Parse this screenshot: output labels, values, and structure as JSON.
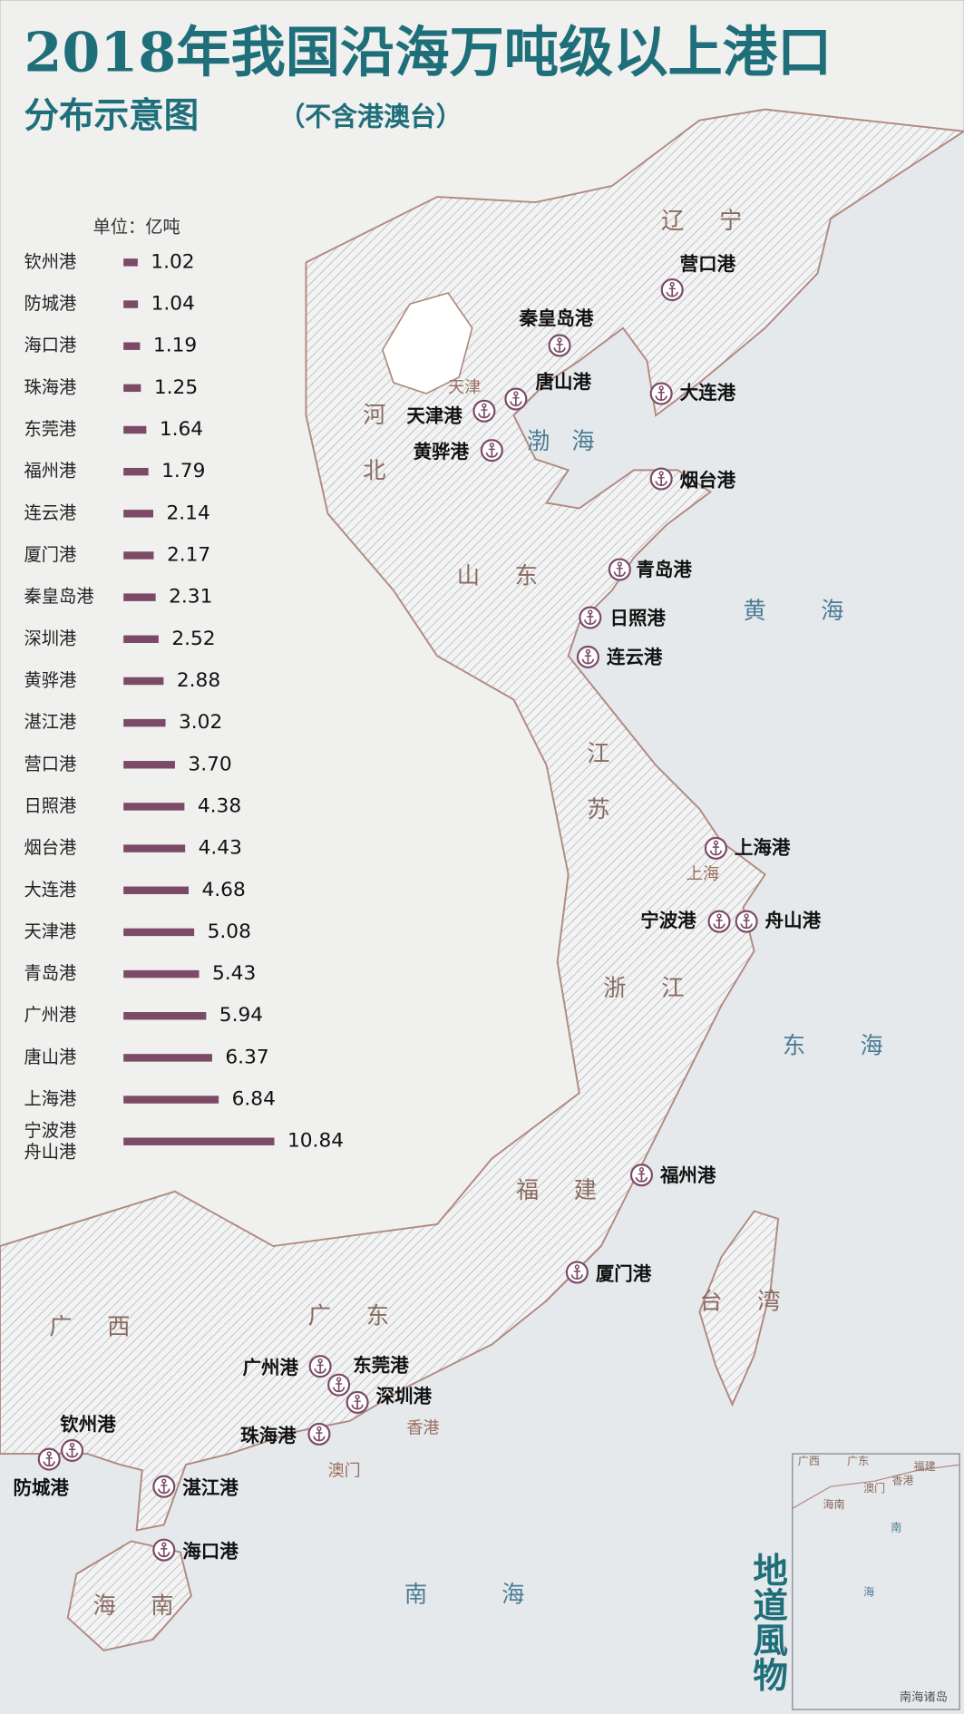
{
  "title": "2018年我国沿海万吨级以上港口",
  "subtitle": "分布示意图",
  "subtitle_note": "（不含港澳台）",
  "chart_data": {
    "type": "bar",
    "orientation": "horizontal",
    "unit": "单位：亿吨",
    "categories": [
      "钦州港",
      "防城港",
      "海口港",
      "珠海港",
      "东莞港",
      "福州港",
      "连云港",
      "厦门港",
      "秦皇岛港",
      "深圳港",
      "黄骅港",
      "湛江港",
      "营口港",
      "日照港",
      "烟台港",
      "大连港",
      "天津港",
      "青岛港",
      "广州港",
      "唐山港",
      "上海港",
      "宁波港\n舟山港"
    ],
    "values": [
      1.02,
      1.04,
      1.19,
      1.25,
      1.64,
      1.79,
      2.14,
      2.17,
      2.31,
      2.52,
      2.88,
      3.02,
      3.7,
      4.38,
      4.43,
      4.68,
      5.08,
      5.43,
      5.94,
      6.37,
      6.84,
      10.84
    ],
    "value_labels": [
      "1.02",
      "1.04",
      "1.19",
      "1.25",
      "1.64",
      "1.79",
      "2.14",
      "2.17",
      "2.31",
      "2.52",
      "2.88",
      "3.02",
      "3.70",
      "4.38",
      "4.43",
      "4.68",
      "5.08",
      "5.43",
      "5.94",
      "6.37",
      "6.84",
      "10.84"
    ],
    "color": "#7b4a66"
  },
  "map": {
    "ports": [
      "营口港",
      "秦皇岛港",
      "唐山港",
      "大连港",
      "天津港",
      "黄骅港",
      "烟台港",
      "青岛港",
      "日照港",
      "连云港",
      "上海港",
      "宁波港",
      "舟山港",
      "福州港",
      "厦门港",
      "广州港",
      "东莞港",
      "深圳港",
      "珠海港",
      "钦州港",
      "防城港",
      "湛江港",
      "海口港"
    ],
    "provinces": [
      "辽宁",
      "河北",
      "山东",
      "江苏",
      "浙江",
      "福建",
      "广东",
      "广西",
      "台湾",
      "海南"
    ],
    "cities": [
      "天津",
      "上海",
      "香港",
      "澳门"
    ],
    "seas": [
      "渤海",
      "黄海",
      "东海",
      "南海"
    ],
    "inset": {
      "labels": [
        "广西",
        "广东",
        "福建",
        "澳门",
        "香港",
        "海南",
        "南",
        "海"
      ],
      "title": "南海诸岛"
    }
  },
  "watermark": "地道風物"
}
